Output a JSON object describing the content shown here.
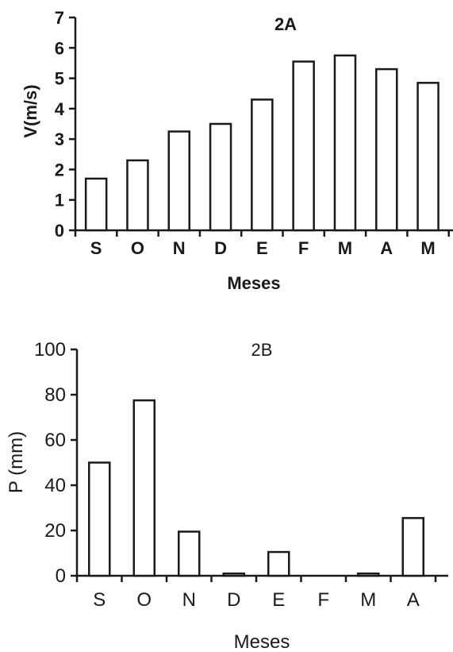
{
  "chart_data": [
    {
      "type": "bar",
      "title": "2A",
      "xlabel": "Meses",
      "ylabel": "V(m/s)",
      "categories": [
        "S",
        "O",
        "N",
        "D",
        "E",
        "F",
        "M",
        "A",
        "M"
      ],
      "values": [
        1.7,
        2.3,
        3.25,
        3.5,
        4.3,
        5.55,
        5.75,
        5.3,
        4.85
      ],
      "ylim": [
        0,
        7
      ],
      "yticks": [
        0,
        1,
        2,
        3,
        4,
        5,
        6,
        7
      ],
      "grid": false,
      "legend": "none",
      "bar_color": "#ffffff",
      "edge_color": "#1a1a1a"
    },
    {
      "type": "bar",
      "title": "2B",
      "xlabel": "Meses",
      "ylabel": "P (mm)",
      "categories": [
        "S",
        "O",
        "N",
        "D",
        "E",
        "F",
        "M",
        "A"
      ],
      "values": [
        50,
        77.5,
        19.5,
        1,
        10.5,
        0,
        1,
        25.5
      ],
      "ylim": [
        0,
        100
      ],
      "yticks": [
        0,
        20,
        40,
        60,
        80,
        100
      ],
      "grid": false,
      "legend": "none",
      "bar_color": "#ffffff",
      "edge_color": "#1a1a1a"
    }
  ]
}
